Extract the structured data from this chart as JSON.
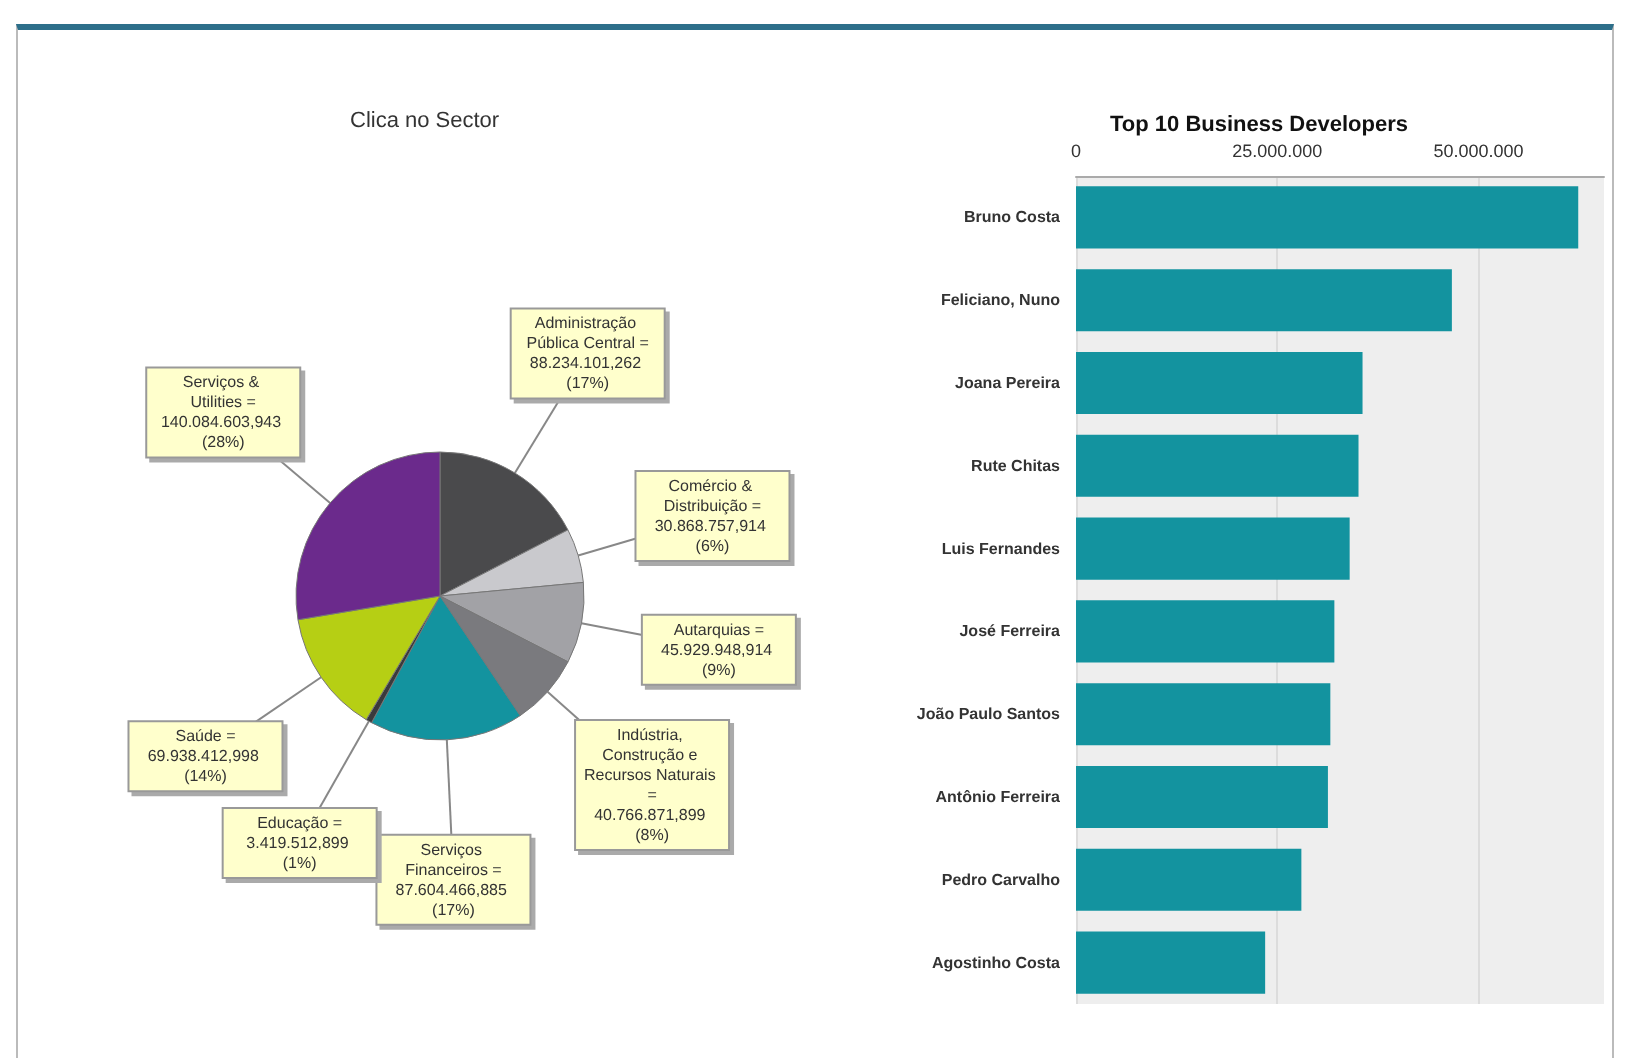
{
  "chart_data": [
    {
      "type": "pie",
      "title": "Clica no Sector",
      "categories": [
        "Administração Pública Central =",
        "Comércio & Distribuição =",
        "Autarquias =",
        "Indústria, Construção e Recursos Naturais =",
        "Serviços Financeiros =",
        "Educação =",
        "Saúde =",
        "Serviços & Utilities ="
      ],
      "values": [
        88234101.262,
        30868757.914,
        45929948.914,
        40766871.899,
        87604466.885,
        3419512.899,
        69938412.998,
        140084603.943
      ],
      "colors": [
        "#4a4a4c",
        "#c9c9cd",
        "#a2a2a6",
        "#7a7a7e",
        "#13939f",
        "#3a3a3c",
        "#b6cf14",
        "#6b2a8c"
      ],
      "value_labels": [
        "88.234.101,262 (17%)",
        "30.868.757,914 (6%)",
        "45.929.948,914 (9%)",
        "40.766.871,899 (8%)",
        "87.604.466,885 (17%)",
        "3.419.512,899 (1%)",
        "69.938.412,998 (14%)",
        "140.084.603,943 (28%)"
      ]
    },
    {
      "type": "bar",
      "title": "Top 10 Business Developers",
      "orientation": "horizontal",
      "categories": [
        "Bruno Costa",
        "Feliciano, Nuno",
        "Joana Pereira",
        "Rute Chitas",
        "Luis Fernandes",
        "José Ferreira",
        "João Paulo Santos",
        "Antônio Ferreira",
        "Pedro Carvalho",
        "Agostinho Costa"
      ],
      "values": [
        62400000,
        46700000,
        35600000,
        35100000,
        34000000,
        32100000,
        31600000,
        31300000,
        28000000,
        23500000
      ],
      "color": "#13939f",
      "xlim": [
        0,
        65600000
      ],
      "xticks": [
        0,
        {
          "value": 25000000,
          "label": "25.000.000"
        },
        {
          "value": 50000000,
          "label": "50.000.000"
        }
      ],
      "grid": "x"
    }
  ]
}
